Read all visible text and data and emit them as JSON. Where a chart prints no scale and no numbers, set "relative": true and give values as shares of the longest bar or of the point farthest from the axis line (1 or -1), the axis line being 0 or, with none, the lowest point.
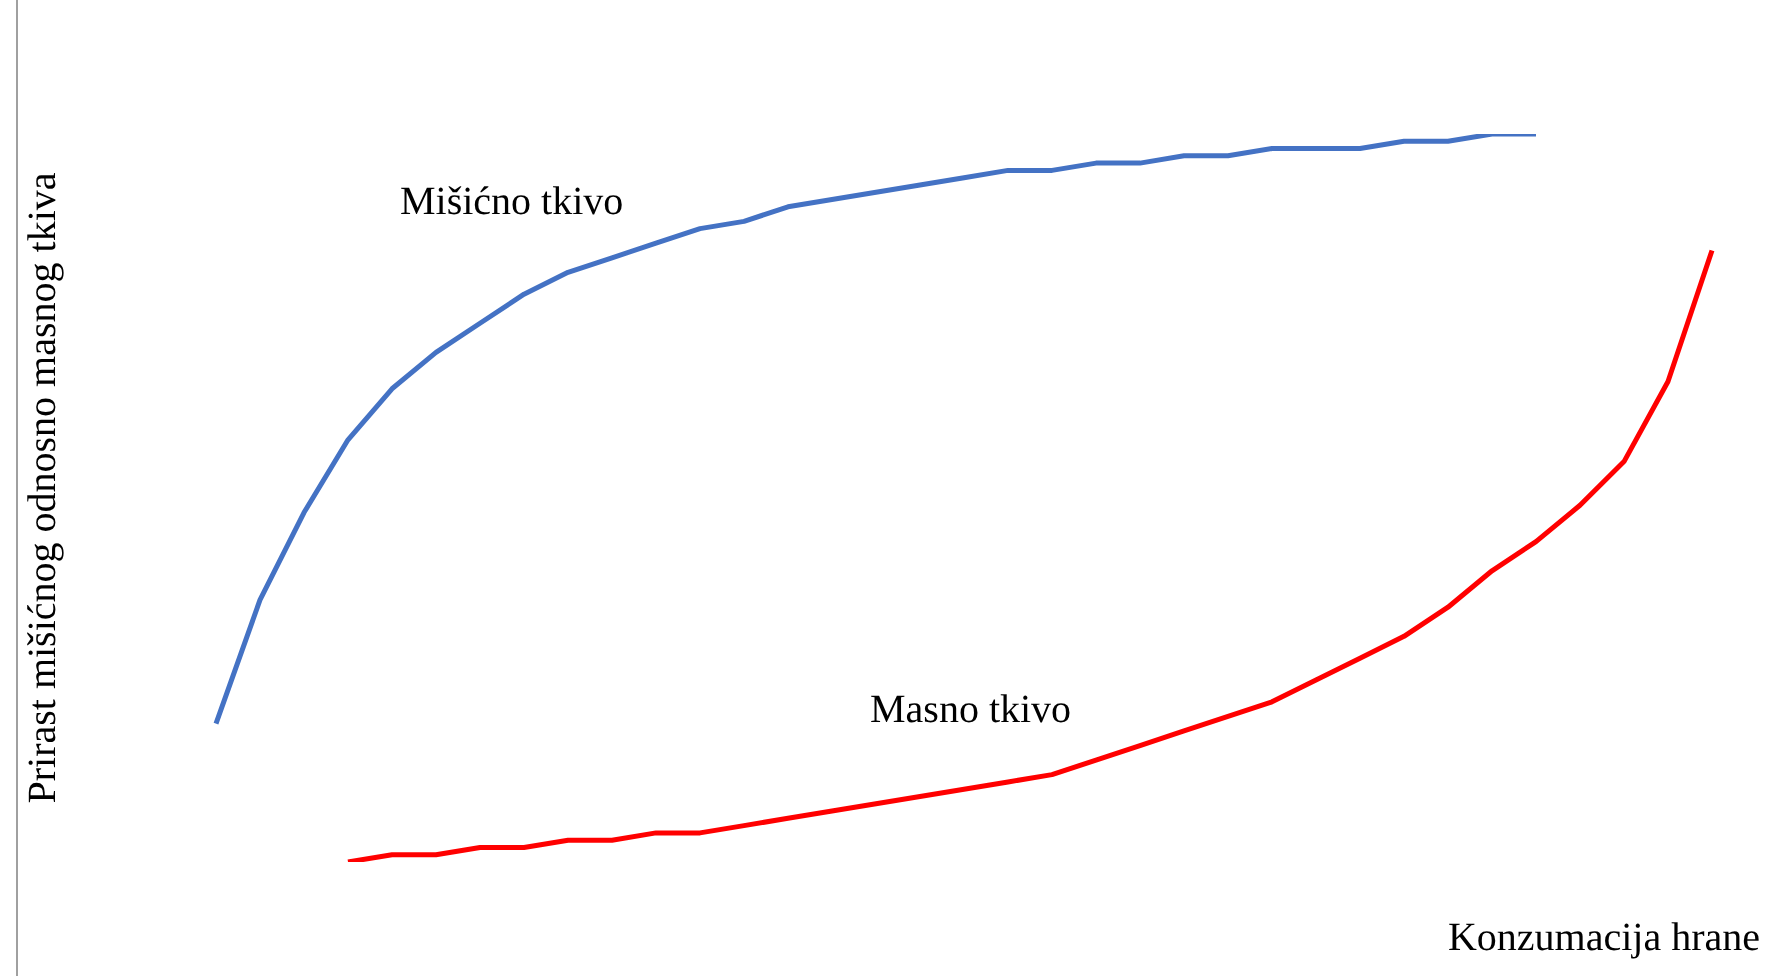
{
  "chart_data": {
    "type": "line",
    "relative": true,
    "ylabel": "Prirast mišićnog odnosno masnog tkiva",
    "xlabel": "Konzumacija hrane",
    "categories": [
      null,
      null,
      null,
      null,
      null,
      null,
      null,
      null,
      null,
      null,
      null,
      null,
      null,
      null,
      null,
      null,
      null,
      null,
      null,
      null,
      null,
      null,
      null,
      null,
      null,
      null,
      null,
      null,
      null,
      null,
      null,
      null,
      null,
      null,
      null
    ],
    "marker": "none",
    "legend": false,
    "grid": false,
    "series": [
      {
        "name": "Mišićno tkivo",
        "color": "#4472c4",
        "values": [
          0.19,
          0.36,
          0.48,
          0.58,
          0.65,
          0.7,
          0.74,
          0.78,
          0.81,
          0.83,
          0.85,
          0.87,
          0.88,
          0.9,
          0.91,
          0.92,
          0.93,
          0.94,
          0.95,
          0.95,
          0.96,
          0.96,
          0.97,
          0.97,
          0.98,
          0.98,
          0.98,
          0.99,
          0.99,
          1.0,
          1,
          null,
          null,
          null,
          null
        ]
      },
      {
        "name": "Masno tkivo",
        "color": "#ff0000",
        "values": [
          null,
          null,
          null,
          0,
          0.01,
          0.01,
          0.02,
          0.02,
          0.03,
          0.03,
          0.04,
          0.04,
          0.05,
          0.06,
          0.07,
          0.08,
          0.09,
          0.1,
          0.11,
          0.12,
          0.14,
          0.16,
          0.18,
          0.2,
          0.22,
          0.25,
          0.28,
          0.31,
          0.35,
          0.4,
          0.44,
          0.49,
          0.55,
          0.66,
          0.84
        ]
      }
    ]
  }
}
